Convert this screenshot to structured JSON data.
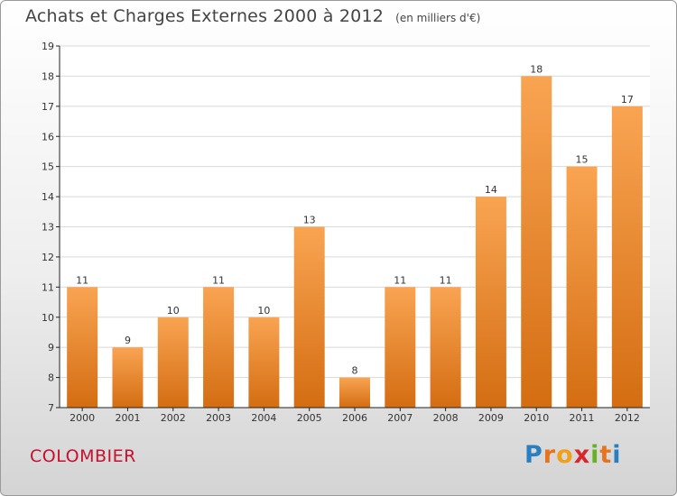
{
  "title": "Achats et Charges Externes 2000 à 2012",
  "unit": "(en milliers d'€)",
  "town": "COLOMBIER",
  "logo": {
    "letters": [
      "P",
      "r",
      "o",
      "x",
      "i",
      "t",
      "i"
    ],
    "colors": [
      "#2a7fc1",
      "#e8731a",
      "#f2a019",
      "#d9262b",
      "#6ab023",
      "#e8731a",
      "#2a7fc1"
    ]
  },
  "colors": {
    "bar_top": "#f9a452",
    "bar_bottom": "#d46d12",
    "axis": "#222222",
    "grid": "#d9d9d9"
  },
  "chart_data": {
    "type": "bar",
    "title": "Achats et Charges Externes 2000 à 2012",
    "categories": [
      "2000",
      "2001",
      "2002",
      "2003",
      "2004",
      "2005",
      "2006",
      "2007",
      "2008",
      "2009",
      "2010",
      "2011",
      "2012"
    ],
    "values": [
      11,
      9,
      10,
      11,
      10,
      13,
      8,
      11,
      11,
      14,
      18,
      15,
      17
    ],
    "yticks": [
      7,
      8,
      9,
      10,
      11,
      12,
      13,
      14,
      15,
      16,
      17,
      18,
      19
    ],
    "ylim": [
      7,
      19
    ],
    "grid": true,
    "xlabel": "",
    "ylabel": ""
  }
}
